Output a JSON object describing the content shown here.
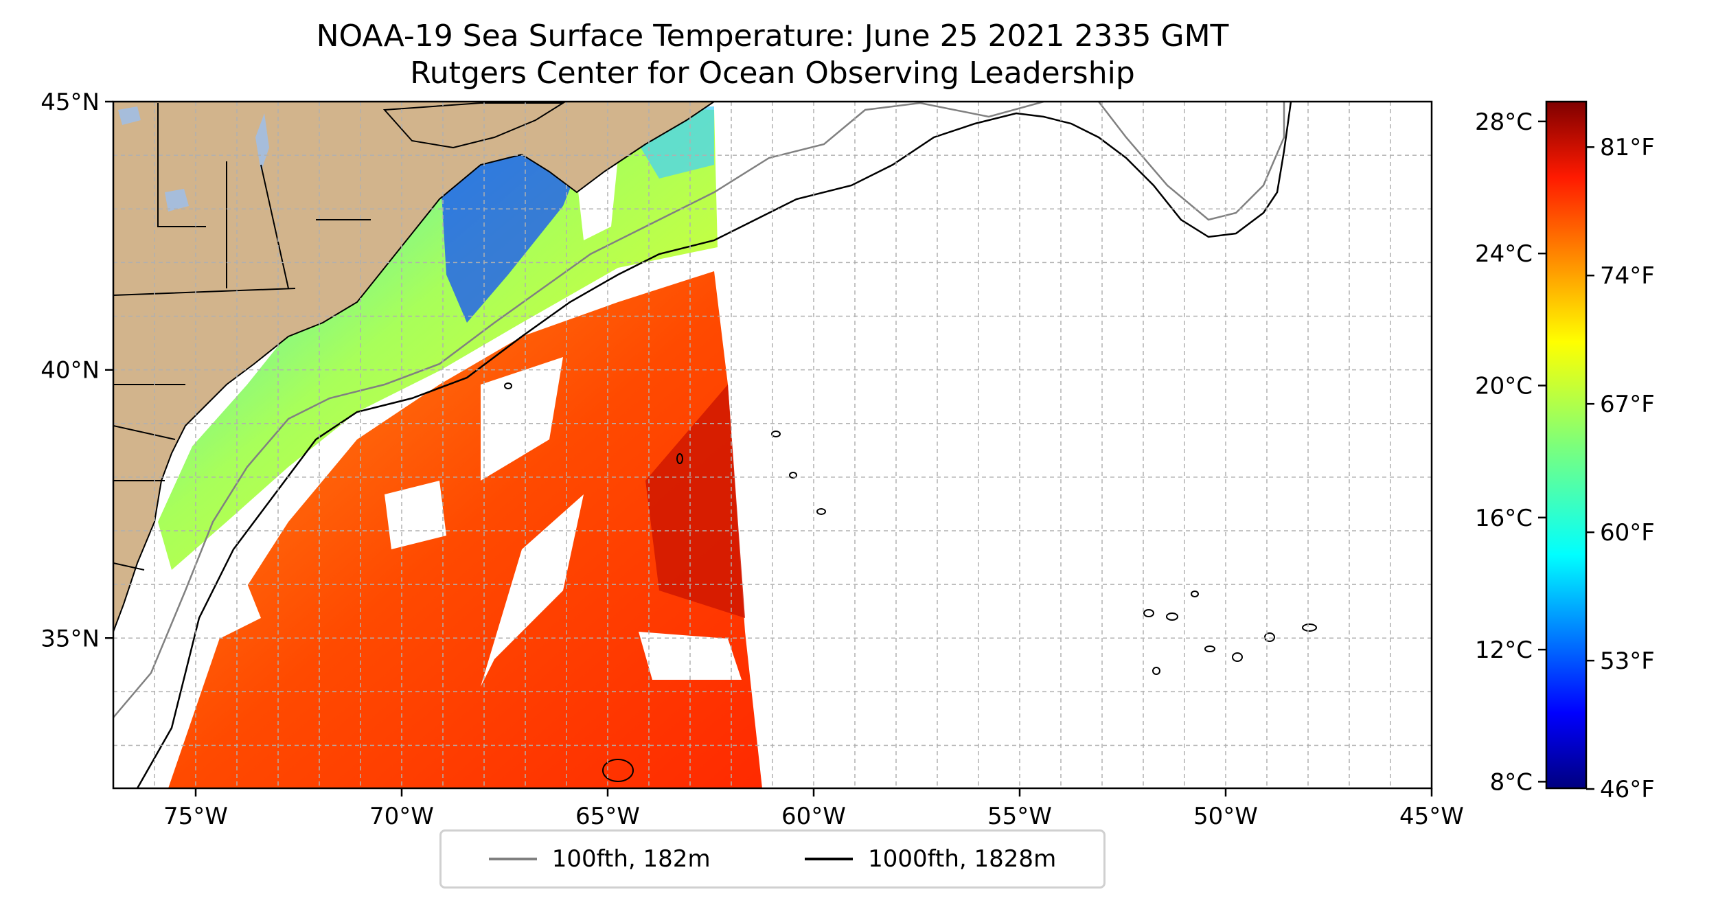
{
  "title": "NOAA-19 Sea Surface Temperature: June 25 2021 2335 GMT",
  "subtitle": "Rutgers Center for Ocean Observing Leadership",
  "map": {
    "lon_range": [
      -77,
      -45
    ],
    "lat_range": [
      32.2,
      45
    ],
    "lon_ticks": [
      {
        "value": -75,
        "label": "75°W"
      },
      {
        "value": -70,
        "label": "70°W"
      },
      {
        "value": -65,
        "label": "65°W"
      },
      {
        "value": -60,
        "label": "60°W"
      },
      {
        "value": -55,
        "label": "55°W"
      },
      {
        "value": -50,
        "label": "50°W"
      },
      {
        "value": -45,
        "label": "45°W"
      }
    ],
    "lat_ticks": [
      {
        "value": 45,
        "label": "45°N"
      },
      {
        "value": 40,
        "label": "40°N"
      },
      {
        "value": 35,
        "label": "35°N"
      }
    ],
    "gridlines": true,
    "land_color": "#d2b48c",
    "lake_color": "#a6bddb"
  },
  "colorbar": {
    "colormap": "jet",
    "celsius_range": [
      7.8,
      28.6
    ],
    "celsius_ticks": [
      {
        "value": 28,
        "label": "28°C"
      },
      {
        "value": 24,
        "label": "24°C"
      },
      {
        "value": 20,
        "label": "20°C"
      },
      {
        "value": 16,
        "label": "16°C"
      },
      {
        "value": 12,
        "label": "12°C"
      },
      {
        "value": 8,
        "label": "8°C"
      }
    ],
    "fahrenheit_ticks": [
      {
        "value": 81,
        "label": "81°F"
      },
      {
        "value": 74,
        "label": "74°F"
      },
      {
        "value": 67,
        "label": "67°F"
      },
      {
        "value": 60,
        "label": "60°F"
      },
      {
        "value": 53,
        "label": "53°F"
      },
      {
        "value": 46,
        "label": "46°F"
      }
    ]
  },
  "legend": {
    "items": [
      {
        "label": "100fth, 182m",
        "color": "#808080"
      },
      {
        "label": "1000fth, 1828m",
        "color": "#000000"
      }
    ]
  }
}
